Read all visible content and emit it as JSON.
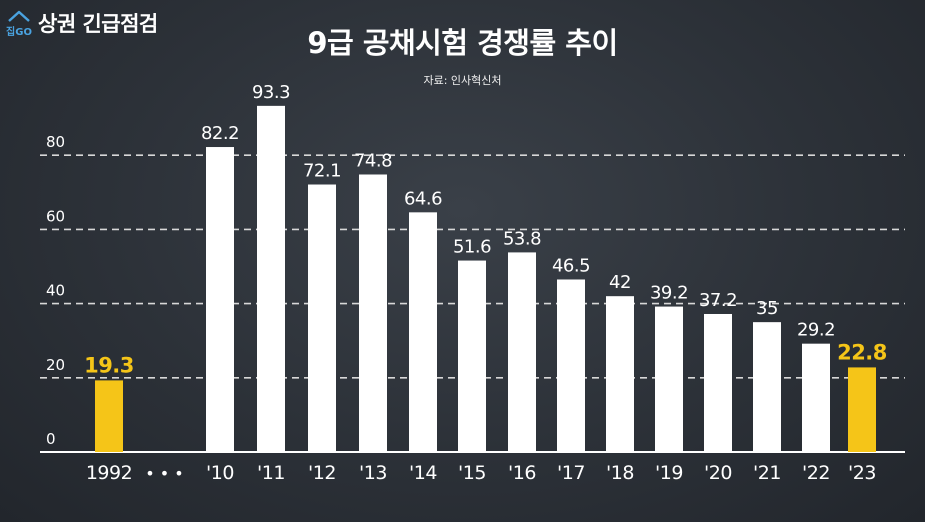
{
  "brand": {
    "logo_caption": "집GO",
    "program_name": "상권 긴급점검",
    "logo_icon": "house-icon"
  },
  "chart_data": {
    "type": "bar",
    "title": "9급 공채시험 경쟁률 추이",
    "subtitle": "자료: 인사혁신처",
    "xlabel": "",
    "ylabel": "",
    "ylim": [
      0,
      100
    ],
    "yticks": [
      0,
      20,
      40,
      60,
      80
    ],
    "grid": true,
    "categories": [
      "1992",
      "'10",
      "'11",
      "'12",
      "'13",
      "'14",
      "'15",
      "'16",
      "'17",
      "'18",
      "'19",
      "'20",
      "'21",
      "'22",
      "'23"
    ],
    "values": [
      19.3,
      82.2,
      93.3,
      72.1,
      74.8,
      64.6,
      51.6,
      53.8,
      46.5,
      42,
      39.2,
      37.2,
      35,
      29.2,
      22.8
    ],
    "value_labels": [
      "19.3",
      "82.2",
      "93.3",
      "72.1",
      "74.8",
      "64.6",
      "51.6",
      "53.8",
      "46.5",
      "42",
      "39.2",
      "37.2",
      "35",
      "29.2",
      "22.8"
    ],
    "highlighted": [
      true,
      false,
      false,
      false,
      false,
      false,
      false,
      false,
      false,
      false,
      false,
      false,
      false,
      false,
      true
    ],
    "axis_break_label": "• • •",
    "colors": {
      "bar": "#ffffff",
      "highlight": "#f5c518",
      "text": "#ffffff",
      "grid": "#d8d8d8"
    }
  }
}
